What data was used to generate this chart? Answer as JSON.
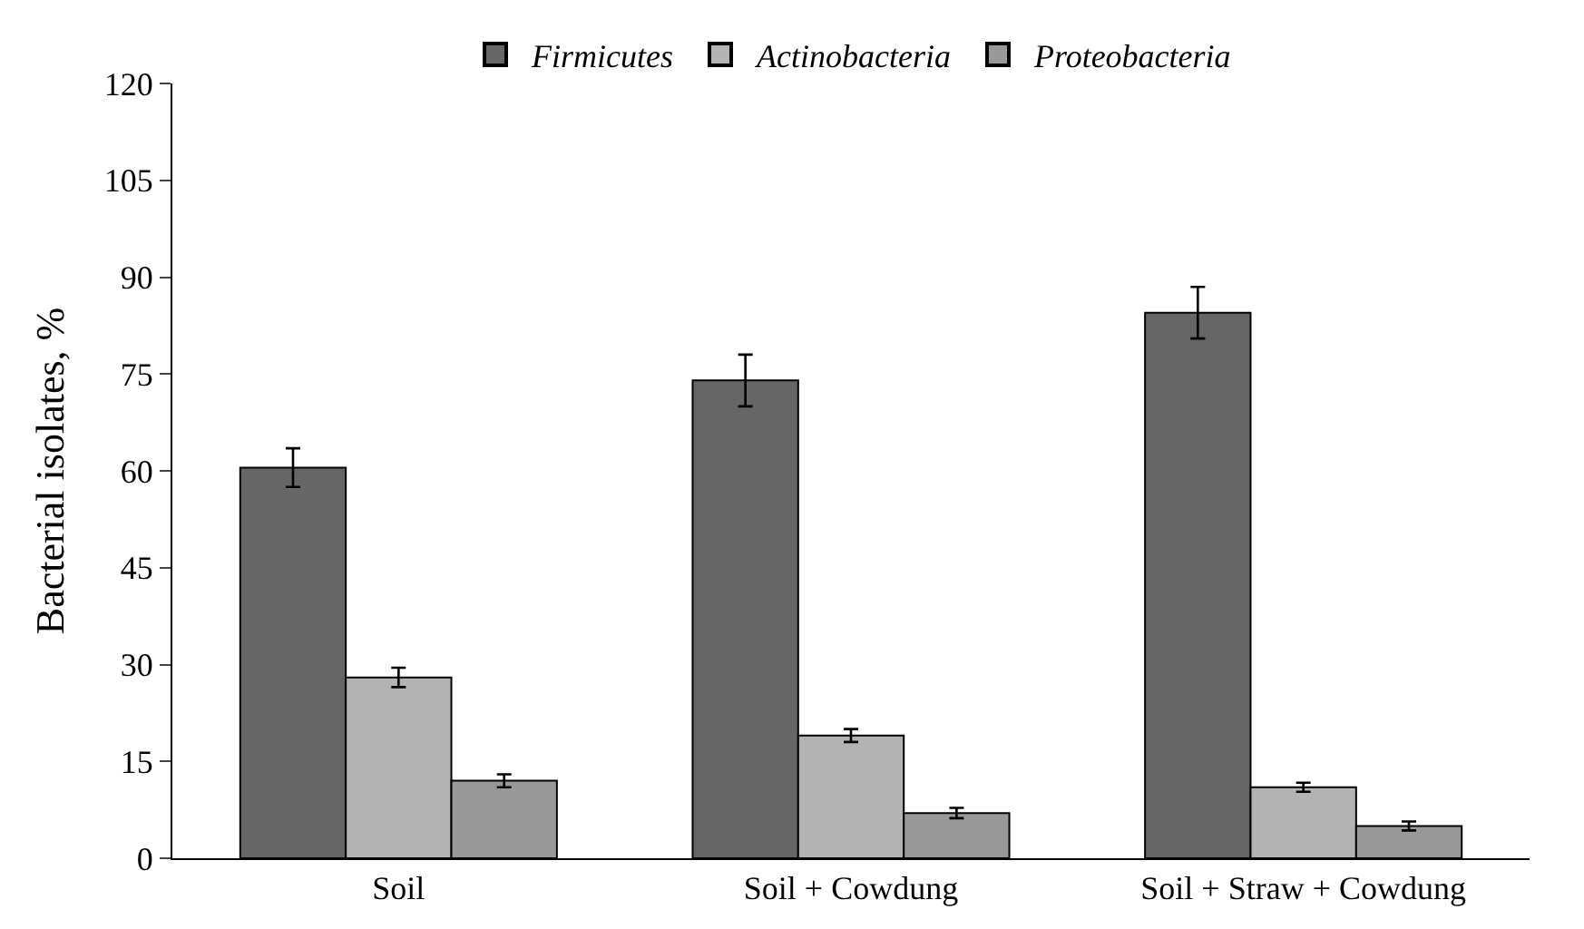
{
  "chart_data": {
    "type": "bar",
    "ylabel": "Bacterial isolates, %",
    "categories": [
      "Soil",
      "Soil + Cowdung",
      "Soil + Straw + Cowdung"
    ],
    "series": [
      {
        "name": "Firmicutes",
        "color": "#666666",
        "values": [
          60.5,
          74,
          84.5
        ],
        "errors": [
          3,
          4,
          4
        ]
      },
      {
        "name": "Actinobacteria",
        "color": "#b3b3b3",
        "values": [
          28,
          19,
          11
        ],
        "errors": [
          1.5,
          1,
          0.7
        ]
      },
      {
        "name": "Proteobacteria",
        "color": "#999999",
        "values": [
          12,
          7,
          5
        ],
        "errors": [
          1,
          0.8,
          0.7
        ]
      }
    ],
    "ylim": [
      0,
      120
    ],
    "yticks": [
      0,
      15,
      30,
      45,
      60,
      75,
      90,
      105,
      120
    ],
    "legend": "top"
  }
}
